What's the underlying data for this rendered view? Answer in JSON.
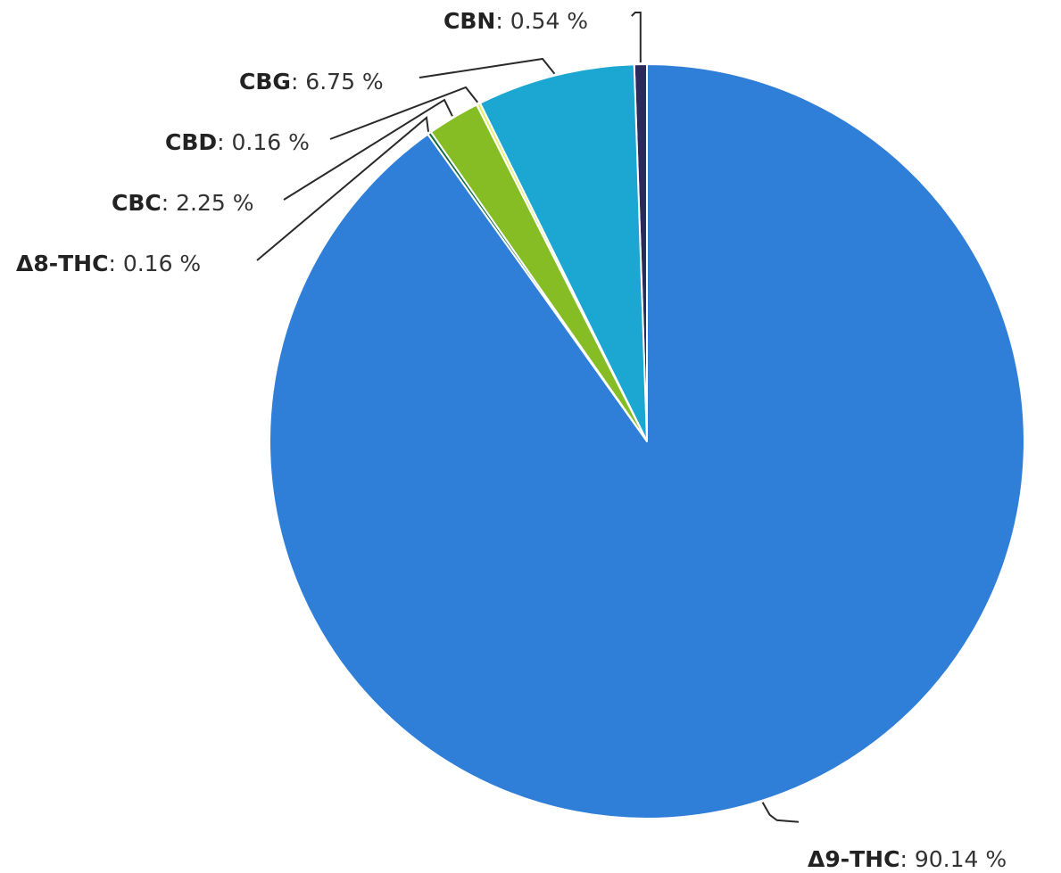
{
  "chart_data": {
    "type": "pie",
    "title": "",
    "label_separator": ": ",
    "unit": "%",
    "slices": [
      {
        "name": "CBN",
        "value": 0.54,
        "display": "0.54 %",
        "color": "#2b2a5c"
      },
      {
        "name": "CBG",
        "value": 6.75,
        "display": "6.75 %",
        "color": "#1ca6d2"
      },
      {
        "name": "CBD",
        "value": 0.16,
        "display": "0.16 %",
        "color": "#e3ef6a"
      },
      {
        "name": "CBC",
        "value": 2.25,
        "display": "2.25 %",
        "color": "#86bd24"
      },
      {
        "name": "Δ8-THC",
        "value": 0.16,
        "display": "0.16 %",
        "color": "#0f6b44"
      },
      {
        "name": "Δ9-THC",
        "value": 90.14,
        "display": "90.14 %",
        "color": "#2f7fd9"
      }
    ],
    "start_angle": "top",
    "direction": "counterclockwise",
    "legend": "none",
    "labels": "outside-with-leader-lines"
  }
}
